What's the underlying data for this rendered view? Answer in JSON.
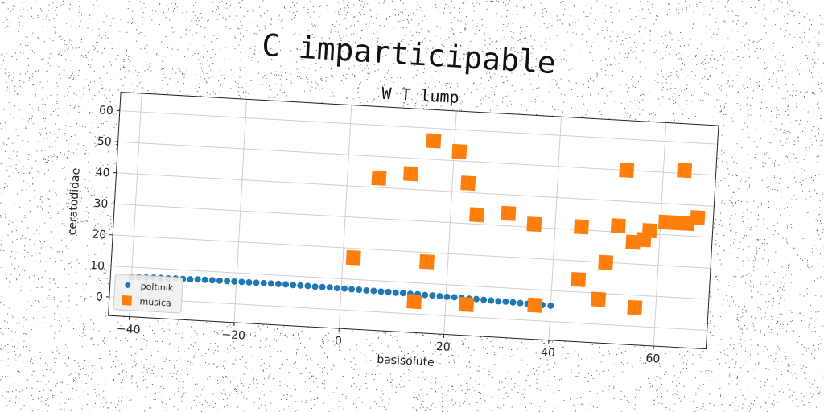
{
  "figure": {
    "suptitle": "C imparticipable"
  },
  "chart_data": {
    "type": "scatter",
    "title": "W T lump",
    "xlabel": "basisolute",
    "ylabel": "ceratodidae",
    "xlim": [
      -44,
      70
    ],
    "ylim": [
      -6,
      66
    ],
    "xticks": [
      -40,
      -20,
      0,
      20,
      40,
      60
    ],
    "xtick_labels": [
      "−40",
      "−20",
      "0",
      "20",
      "40",
      "60"
    ],
    "yticks": [
      0,
      10,
      20,
      30,
      40,
      50,
      60
    ],
    "ytick_labels": [
      "0",
      "10",
      "20",
      "30",
      "40",
      "50",
      "60"
    ],
    "grid": true,
    "legend": "lower-left",
    "series": [
      {
        "name": "poltinik",
        "marker": "circle",
        "color": "#1f77b4",
        "x": [
          -40.0,
          -38.6,
          -37.2,
          -35.8,
          -34.4,
          -33.0,
          -31.6,
          -30.2,
          -28.8,
          -27.4,
          -26.0,
          -24.6,
          -23.2,
          -21.8,
          -20.4,
          -19.0,
          -17.6,
          -16.2,
          -14.8,
          -13.4,
          -12.0,
          -10.6,
          -9.2,
          -7.8,
          -6.4,
          -5.0,
          -3.6,
          -2.2,
          -0.8,
          0.6,
          2.0,
          3.4,
          4.8,
          6.2,
          7.6,
          9.0,
          10.4,
          11.8,
          13.2,
          14.6,
          16.0,
          17.4,
          18.8,
          20.2,
          21.6,
          23.0,
          24.4,
          25.8,
          27.2,
          28.6,
          30.0,
          31.4,
          32.8,
          34.2,
          35.6,
          37.0,
          38.4,
          40.0
        ],
        "y": [
          6.8,
          6.9,
          6.9,
          7.0,
          7.0,
          7.0,
          7.1,
          7.1,
          7.1,
          7.2,
          7.2,
          7.2,
          7.2,
          7.2,
          7.2,
          7.2,
          7.2,
          7.2,
          7.2,
          7.2,
          7.2,
          7.2,
          7.1,
          7.1,
          7.1,
          7.0,
          7.0,
          7.0,
          6.9,
          6.9,
          6.8,
          6.8,
          6.7,
          6.7,
          6.6,
          6.6,
          6.5,
          6.5,
          6.4,
          6.4,
          6.3,
          6.3,
          6.2,
          6.1,
          6.1,
          6.0,
          5.9,
          5.9,
          5.8,
          5.7,
          5.6,
          5.6,
          5.5,
          5.4,
          5.3,
          5.2,
          5.2,
          5.1
        ]
      },
      {
        "name": "musica",
        "marker": "square",
        "color": "#ff7f0e",
        "x": [
          2,
          6,
          12,
          14,
          16,
          16,
          21,
          23,
          24,
          25,
          31,
          36,
          37,
          45,
          45,
          49,
          50,
          52,
          53,
          55,
          56,
          57,
          58,
          61,
          63,
          64,
          65,
          67
        ],
        "y": [
          17,
          43,
          45,
          4,
          17,
          56,
          53,
          43,
          4,
          33,
          34,
          31,
          5,
          31,
          14,
          8,
          20,
          32,
          50,
          27,
          6,
          28,
          31,
          34,
          34,
          51,
          34,
          36
        ]
      }
    ]
  }
}
